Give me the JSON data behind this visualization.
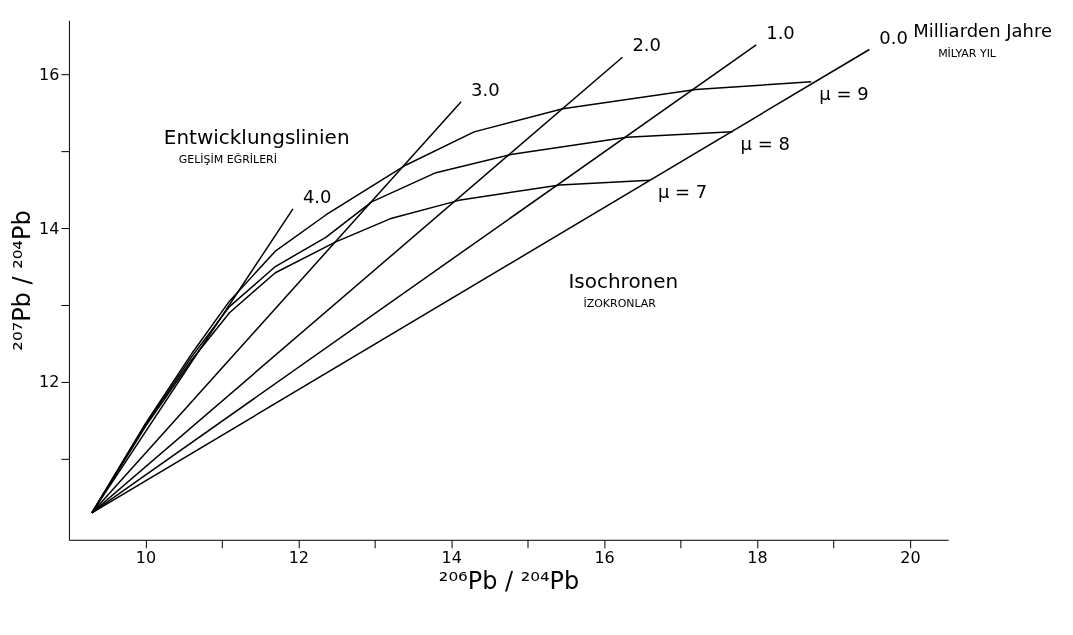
{
  "chart_data": {
    "type": "line",
    "xlabel": "²⁰⁶Pb / ²⁰⁴Pb",
    "ylabel": "²⁰⁷Pb / ²⁰⁴Pb",
    "xlim": [
      9.0,
      20.5
    ],
    "ylim": [
      9.95,
      16.7
    ],
    "xticks": [
      10,
      {
        "value": 11,
        "label": null
      },
      12,
      {
        "value": 13,
        "label": null
      },
      14,
      {
        "value": 15,
        "label": null
      },
      16,
      {
        "value": 17,
        "label": null
      },
      18,
      {
        "value": 19,
        "label": null
      },
      20
    ],
    "yticks": [
      {
        "value": 11,
        "label": null
      },
      12,
      {
        "value": 13,
        "label": null
      },
      14,
      {
        "value": 15,
        "label": null
      },
      16
    ],
    "grid": false,
    "marker": "none",
    "line_style": "solid",
    "annotations": [
      "Entwicklungslinien",
      "GELİŞİM EĞRİLERİ",
      "Isochronen",
      "İZOKRONLAR",
      "Milliarden Jahre",
      "MİLYAR YIL"
    ],
    "series": [
      {
        "name": "4.0",
        "color": "#000000",
        "x": [
          9.3,
          11.93
        ],
        "values": [
          10.3,
          14.25
        ]
      },
      {
        "name": "3.0",
        "color": "#000000",
        "x": [
          9.3,
          14.13
        ],
        "values": [
          10.3,
          15.64
        ]
      },
      {
        "name": "2.0",
        "color": "#000000",
        "x": [
          9.3,
          16.24
        ],
        "values": [
          10.3,
          16.22
        ]
      },
      {
        "name": "1.0",
        "color": "#000000",
        "x": [
          9.3,
          17.99
        ],
        "values": [
          10.3,
          16.38
        ]
      },
      {
        "name": "0.0",
        "color": "#000000",
        "x": [
          9.3,
          19.47
        ],
        "values": [
          10.3,
          16.32
        ]
      },
      {
        "name": "μ = 7",
        "color": "#000000",
        "x": [
          9.3,
          10.0,
          10.6,
          11.1,
          11.7,
          12.49,
          13.2,
          14.1,
          15.42,
          16.6
        ],
        "values": [
          10.3,
          11.42,
          12.28,
          12.9,
          13.42,
          13.82,
          14.12,
          14.36,
          14.56,
          14.62
        ]
      },
      {
        "name": "μ = 8",
        "color": "#000000",
        "x": [
          9.3,
          10.0,
          10.6,
          11.1,
          11.7,
          12.36,
          12.96,
          13.8,
          14.8,
          16.3,
          17.68
        ],
        "values": [
          10.3,
          11.44,
          12.32,
          12.98,
          13.5,
          13.88,
          14.34,
          14.72,
          14.96,
          15.18,
          15.25
        ]
      },
      {
        "name": "μ = 9",
        "color": "#000000",
        "x": [
          9.3,
          10.0,
          10.6,
          11.1,
          11.7,
          12.36,
          13.41,
          14.3,
          15.46,
          17.2,
          18.71
        ],
        "values": [
          10.3,
          11.46,
          12.36,
          13.05,
          13.7,
          14.17,
          14.82,
          15.25,
          15.55,
          15.8,
          15.9
        ]
      }
    ]
  }
}
